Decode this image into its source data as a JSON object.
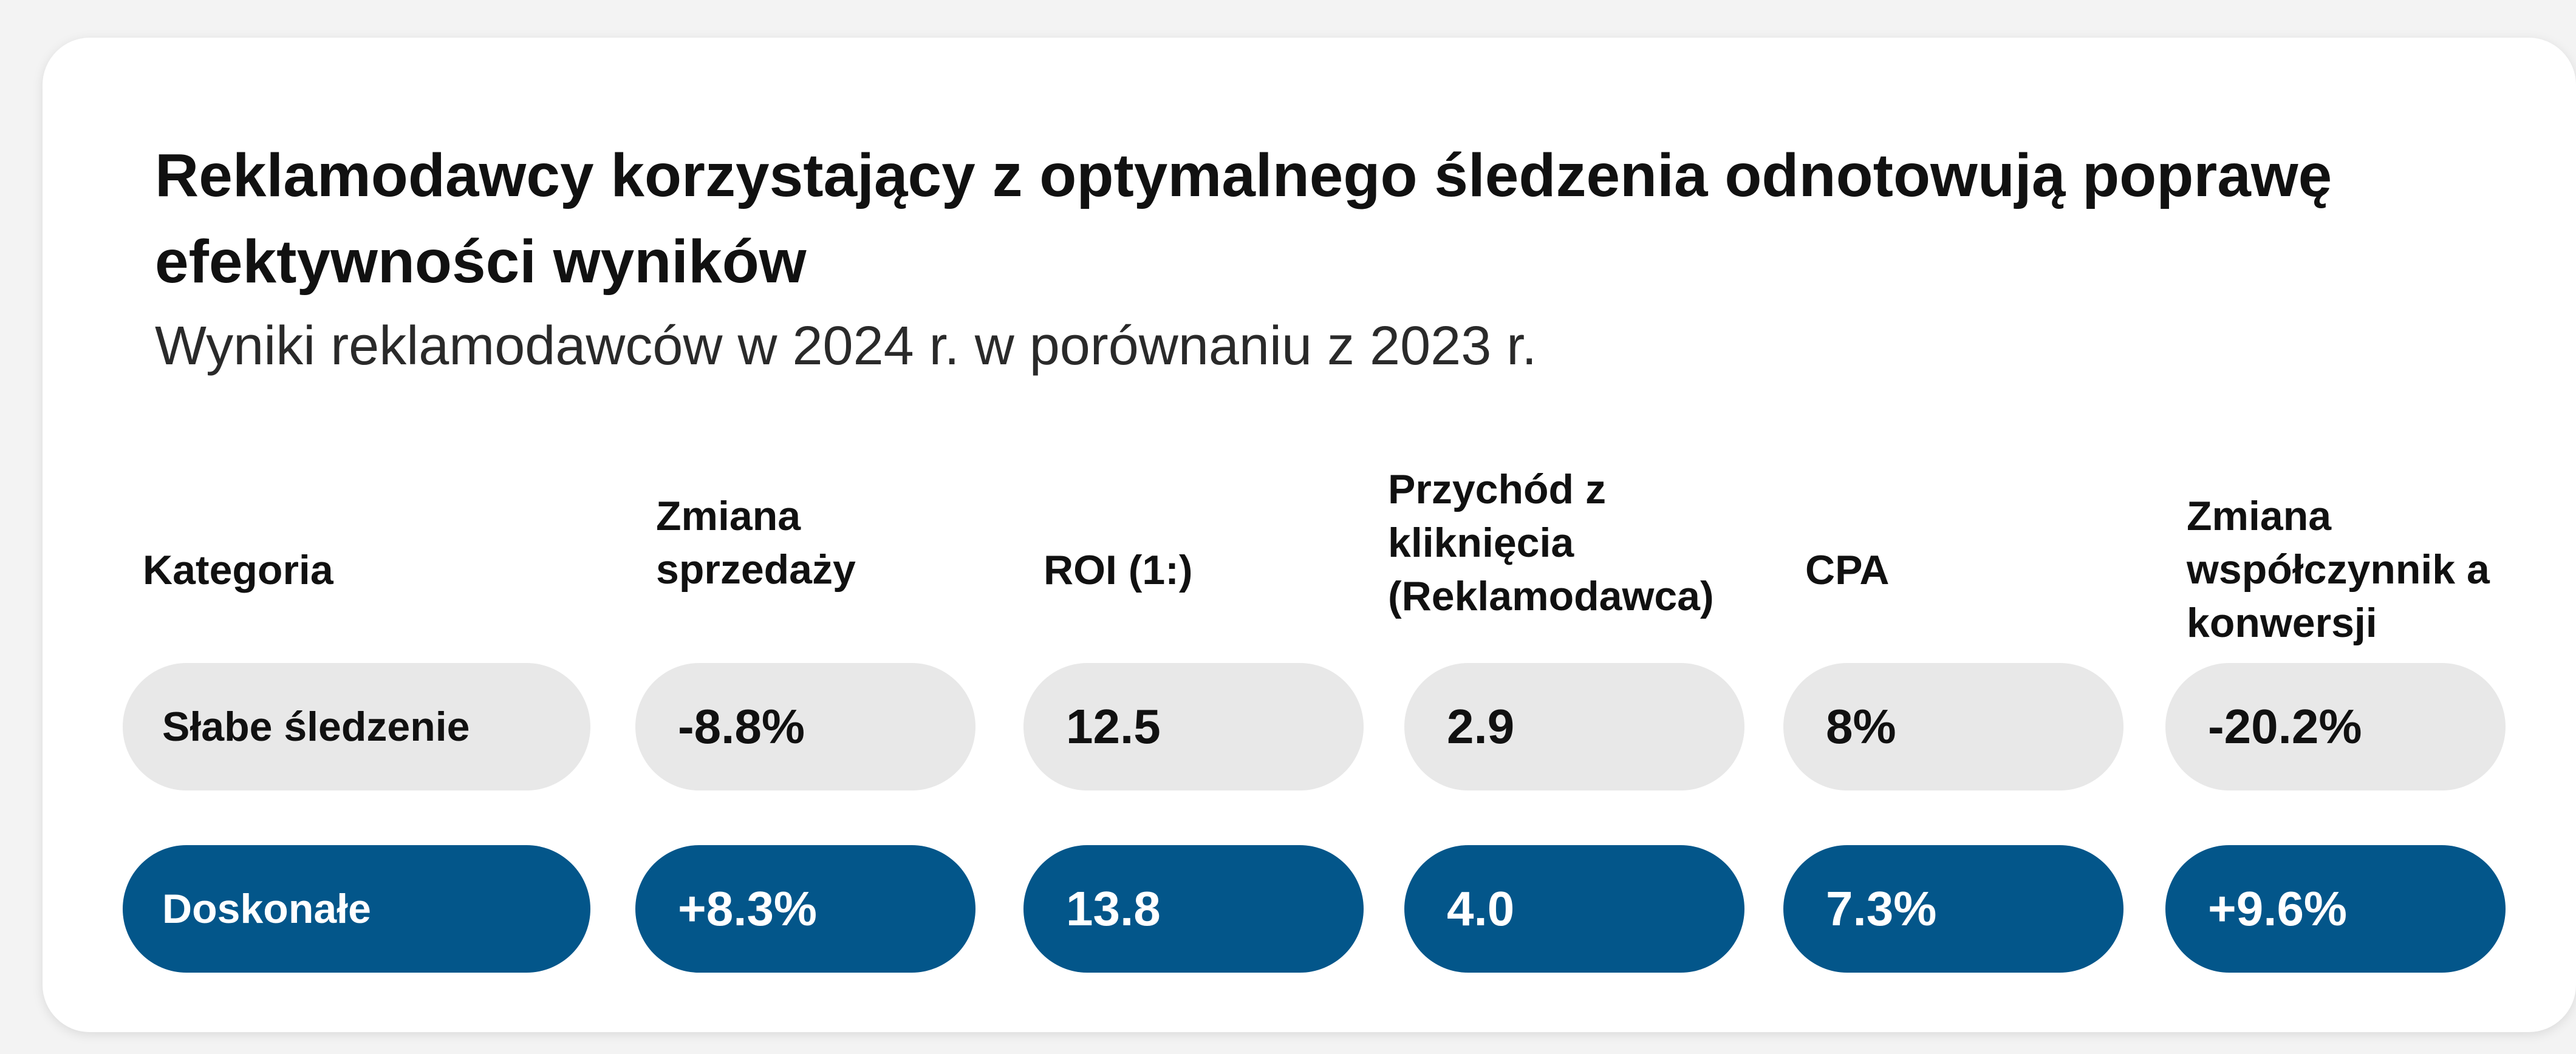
{
  "title": "Reklamodawcy korzystający z optymalnego śledzenia odnotowują poprawę efektywności wyników",
  "subtitle": "Wyniki reklamodawców w 2024 r. w porównaniu z 2023 r.",
  "columns": [
    "Kategoria",
    "Zmiana sprzedaży",
    "ROI (1:)",
    "Przychód z kliknięcia (Reklamodawca)",
    "CPA",
    "Zmiana współczynnik a konwersji"
  ],
  "rows": [
    {
      "category": "Słabe śledzenie",
      "sales_change": "-8.8%",
      "roi": "12.5",
      "revenue_per_click": "2.9",
      "cpa": "8%",
      "conversion_change": "-20.2%"
    },
    {
      "category": "Doskonałe",
      "sales_change": "+8.3%",
      "roi": "13.8",
      "revenue_per_click": "4.0",
      "cpa": "7.3%",
      "conversion_change": "+9.6%"
    }
  ],
  "colors": {
    "weak_pill": "#e8e8e8",
    "strong_pill": "#03568a",
    "card": "#ffffff",
    "background": "#f3f3f3"
  }
}
